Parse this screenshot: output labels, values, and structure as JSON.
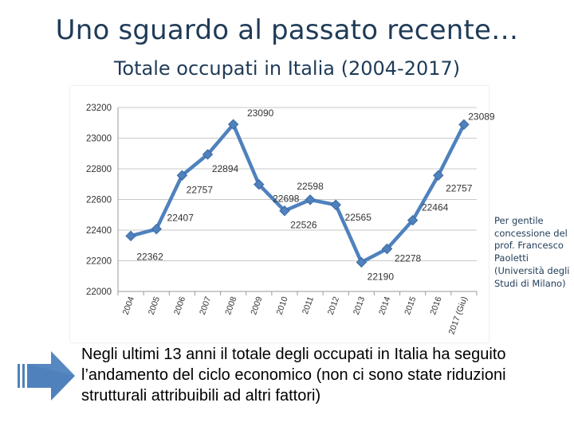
{
  "title": "Uno sguardo al passato recente…",
  "subtitle": "Totale occupati in Italia (2004-2017)",
  "credit": "Per gentile concessione del prof. Francesco Paoletti (Università degli Studi di Milano)",
  "bullet": "Negli ultimi 13 anni il totale degli occupati in Italia ha seguito l’andamento del ciclo economico (non ci sono state riduzioni strutturali attribuibili ad altri fattori)",
  "colors": {
    "series": "#4f81bd",
    "title": "#1f3b57",
    "arrow": "#4f81bd"
  },
  "chart_data": {
    "type": "line",
    "title": "",
    "xlabel": "",
    "ylabel": "",
    "categories": [
      "2004",
      "2005",
      "2006",
      "2007",
      "2008",
      "2009",
      "2010",
      "2011",
      "2012",
      "2013",
      "2014",
      "2015",
      "2016",
      "2017 (Giu)"
    ],
    "series": [
      {
        "values": [
          22362,
          22407,
          22757,
          22894,
          23090,
          22698,
          22526,
          22598,
          22565,
          22190,
          22278,
          22464,
          22757,
          23089
        ]
      }
    ],
    "data_labels": [
      "22362",
      "22407",
      "22757",
      "22894",
      "23090",
      "22698",
      "22526",
      "22598",
      "22565",
      "22190",
      "22278",
      "22464",
      "22757",
      "23089"
    ],
    "ylim": [
      22000,
      23200
    ],
    "yticks": [
      "22000",
      "22200",
      "22400",
      "22600",
      "22800",
      "23000",
      "23200"
    ],
    "grid": true,
    "legend": "none",
    "markers": "diamond"
  }
}
